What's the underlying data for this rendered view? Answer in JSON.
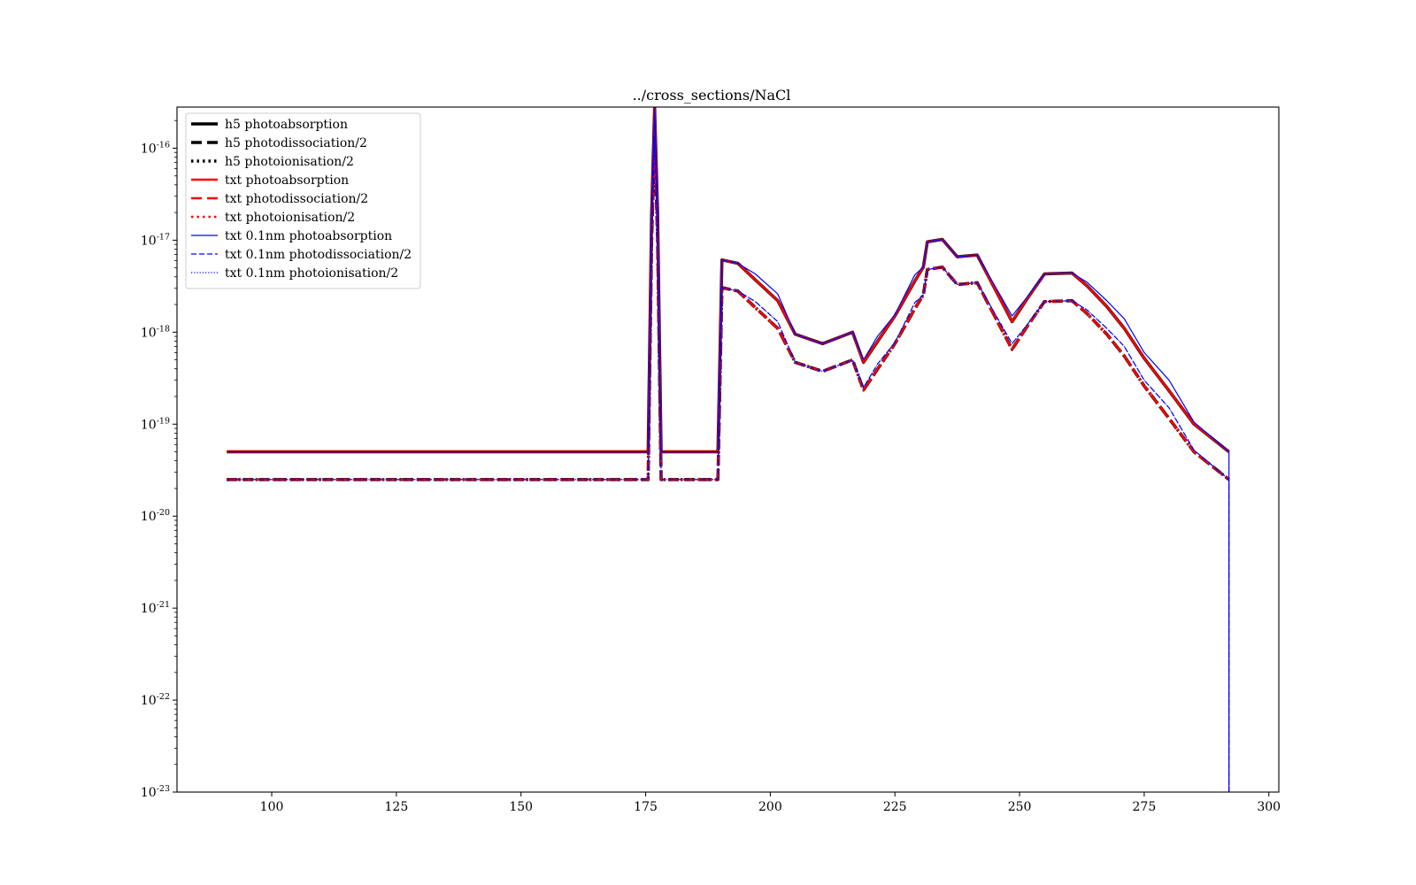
{
  "chart_data": {
    "type": "line",
    "title": "../cross_sections/NaCl",
    "xlabel": "",
    "ylabel": "",
    "xlim": [
      81,
      302
    ],
    "ylim": [
      1e-23,
      2.8e-16
    ],
    "yscale": "log",
    "grid": false,
    "legend_position": "top-left",
    "xticks": [
      {
        "value": 100,
        "label": "100"
      },
      {
        "value": 125,
        "label": "125"
      },
      {
        "value": 150,
        "label": "150"
      },
      {
        "value": 175,
        "label": "175"
      },
      {
        "value": 200,
        "label": "200"
      },
      {
        "value": 225,
        "label": "225"
      },
      {
        "value": 250,
        "label": "250"
      },
      {
        "value": 275,
        "label": "275"
      },
      {
        "value": 300,
        "label": "300"
      }
    ],
    "yticks": [
      {
        "value": 1e-23,
        "base": "10",
        "exp": "-23"
      },
      {
        "value": 1e-22,
        "base": "10",
        "exp": "-22"
      },
      {
        "value": 1e-21,
        "base": "10",
        "exp": "-21"
      },
      {
        "value": 1e-20,
        "base": "10",
        "exp": "-20"
      },
      {
        "value": 1e-19,
        "base": "10",
        "exp": "-19"
      },
      {
        "value": 1e-18,
        "base": "10",
        "exp": "-18"
      },
      {
        "value": 1e-17,
        "base": "10",
        "exp": "-17"
      },
      {
        "value": 1e-16,
        "base": "10",
        "exp": "-16"
      }
    ],
    "series": [
      {
        "name": "h5 photoabsorption",
        "color": "#000000",
        "dash": "solid",
        "width": 3.5,
        "x": [
          91,
          175.5,
          176.2,
          176.8,
          177.4,
          178.1,
          178.7,
          189.5,
          190.3,
          193.5,
          197,
          201.5,
          205,
          210.5,
          216.5,
          218.7,
          221.5,
          225,
          229,
          230.7,
          231.5,
          234.5,
          237.5,
          241.5,
          248.5,
          251.5,
          255,
          260.5,
          263.5,
          267.5,
          271,
          275,
          280,
          285,
          292
        ],
        "y": [
          5e-20,
          5e-20,
          2e-17,
          2.7e-16,
          2e-17,
          5e-20,
          5e-20,
          5e-20,
          6.1e-18,
          5.6e-18,
          3.7e-18,
          2.2e-18,
          9.5e-19,
          7.5e-19,
          1e-18,
          4.7e-19,
          7.9e-19,
          1.5e-18,
          3.6e-18,
          5.1e-18,
          9.6e-18,
          1.02e-17,
          6.6e-18,
          6.9e-18,
          1.3e-18,
          2.3e-18,
          4.3e-18,
          4.4e-18,
          3.2e-18,
          1.9e-18,
          1.1e-18,
          5.2e-19,
          2.3e-19,
          1e-19,
          5e-20
        ]
      },
      {
        "name": "h5 photodissociation/2",
        "color": "#000000",
        "dash": "dashed",
        "width": 3.5,
        "x": [
          91,
          175.5,
          176.2,
          176.8,
          177.4,
          178.1,
          178.7,
          189.5,
          190.3,
          193.5,
          197,
          201.5,
          205,
          210.5,
          216.5,
          218.7,
          221.5,
          225,
          229,
          230.7,
          231.5,
          234.5,
          237.5,
          241.5,
          248.5,
          251.5,
          255,
          260.5,
          263.5,
          267.5,
          271,
          275,
          280,
          285,
          292
        ],
        "y": [
          2.5e-20,
          2.5e-20,
          1e-17,
          1.35e-16,
          1e-17,
          2.5e-20,
          2.5e-20,
          2.5e-20,
          3.05e-18,
          2.8e-18,
          1.85e-18,
          1.1e-18,
          4.7e-19,
          3.75e-19,
          5e-19,
          2.35e-19,
          3.95e-19,
          7.5e-19,
          1.8e-18,
          2.55e-18,
          4.8e-18,
          5.1e-18,
          3.3e-18,
          3.45e-18,
          6.5e-19,
          1.15e-18,
          2.15e-18,
          2.2e-18,
          1.6e-18,
          9.5e-19,
          5.5e-19,
          2.6e-19,
          1.15e-19,
          5e-20,
          2.5e-20
        ]
      },
      {
        "name": "h5 photoionisation/2",
        "color": "#000000",
        "dash": "dotted",
        "width": 3.5,
        "x": [
          91,
          175.5,
          176.2,
          176.8,
          177.4,
          178.1,
          178.7,
          189.5,
          190.3,
          193.5,
          197,
          201.5,
          205,
          210.5,
          216.5,
          218.7,
          221.5,
          225,
          229,
          230.7,
          231.5,
          234.5,
          237.5,
          241.5,
          248.5,
          251.5,
          255,
          260.5,
          263.5,
          267.5,
          271,
          275,
          280,
          285,
          292
        ],
        "y": [
          2.5e-20,
          2.5e-20,
          1e-17,
          1.35e-16,
          1e-17,
          2.5e-20,
          2.5e-20,
          2.5e-20,
          3.05e-18,
          2.8e-18,
          1.85e-18,
          1.1e-18,
          4.7e-19,
          3.75e-19,
          5e-19,
          2.35e-19,
          3.95e-19,
          7.5e-19,
          1.8e-18,
          2.55e-18,
          4.8e-18,
          5.1e-18,
          3.3e-18,
          3.45e-18,
          6.5e-19,
          1.15e-18,
          2.15e-18,
          2.2e-18,
          1.6e-18,
          9.5e-19,
          5.5e-19,
          2.6e-19,
          1.15e-19,
          5e-20,
          2.5e-20
        ]
      },
      {
        "name": "txt photoabsorption",
        "color": "#ff0000",
        "dash": "solid",
        "width": 2.5,
        "x": [
          91,
          175.5,
          176.2,
          176.8,
          177.4,
          178.1,
          178.7,
          189.5,
          190.3,
          193.5,
          197,
          201.5,
          205,
          210.5,
          216.5,
          218.7,
          221.5,
          225,
          229,
          230.7,
          231.5,
          234.5,
          237.5,
          241.5,
          248.5,
          251.5,
          255,
          260.5,
          263.5,
          267.5,
          271,
          275,
          280,
          285,
          292
        ],
        "y": [
          5e-20,
          5e-20,
          2e-17,
          2.7e-16,
          2e-17,
          5e-20,
          5e-20,
          5e-20,
          6.1e-18,
          5.6e-18,
          3.7e-18,
          2.2e-18,
          9.5e-19,
          7.5e-19,
          1e-18,
          4.7e-19,
          7.9e-19,
          1.5e-18,
          3.6e-18,
          5.1e-18,
          9.6e-18,
          1.02e-17,
          6.6e-18,
          6.9e-18,
          1.3e-18,
          2.3e-18,
          4.3e-18,
          4.4e-18,
          3.2e-18,
          1.9e-18,
          1.1e-18,
          5.2e-19,
          2.3e-19,
          1e-19,
          5e-20
        ]
      },
      {
        "name": "txt photodissociation/2",
        "color": "#ff0000",
        "dash": "dashed",
        "width": 2.5,
        "x": [
          91,
          175.5,
          176.2,
          176.8,
          177.4,
          178.1,
          178.7,
          189.5,
          190.3,
          193.5,
          197,
          201.5,
          205,
          210.5,
          216.5,
          218.7,
          221.5,
          225,
          229,
          230.7,
          231.5,
          234.5,
          237.5,
          241.5,
          248.5,
          251.5,
          255,
          260.5,
          263.5,
          267.5,
          271,
          275,
          280,
          285,
          292
        ],
        "y": [
          2.5e-20,
          2.5e-20,
          1e-17,
          1.35e-16,
          1e-17,
          2.5e-20,
          2.5e-20,
          2.5e-20,
          3.05e-18,
          2.8e-18,
          1.85e-18,
          1.1e-18,
          4.7e-19,
          3.75e-19,
          5e-19,
          2.35e-19,
          3.95e-19,
          7.5e-19,
          1.8e-18,
          2.55e-18,
          4.8e-18,
          5.1e-18,
          3.3e-18,
          3.45e-18,
          6.5e-19,
          1.15e-18,
          2.15e-18,
          2.2e-18,
          1.6e-18,
          9.5e-19,
          5.5e-19,
          2.6e-19,
          1.15e-19,
          5e-20,
          2.5e-20
        ]
      },
      {
        "name": "txt photoionisation/2",
        "color": "#ff0000",
        "dash": "dotted",
        "width": 2.5,
        "x": [
          91,
          175.5,
          176.2,
          176.8,
          177.4,
          178.1,
          178.7,
          189.5,
          190.3,
          193.5,
          197,
          201.5,
          205,
          210.5,
          216.5,
          218.7,
          221.5,
          225,
          229,
          230.7,
          231.5,
          234.5,
          237.5,
          241.5,
          248.5,
          251.5,
          255,
          260.5,
          263.5,
          267.5,
          271,
          275,
          280,
          285,
          292
        ],
        "y": [
          2.5e-20,
          2.5e-20,
          1e-17,
          1.35e-16,
          1e-17,
          2.5e-20,
          2.5e-20,
          2.5e-20,
          3.05e-18,
          2.8e-18,
          1.85e-18,
          1.1e-18,
          4.7e-19,
          3.75e-19,
          5e-19,
          2.35e-19,
          3.95e-19,
          7.5e-19,
          1.8e-18,
          2.55e-18,
          4.8e-18,
          5.1e-18,
          3.3e-18,
          3.45e-18,
          6.5e-19,
          1.15e-18,
          2.15e-18,
          2.2e-18,
          1.6e-18,
          9.5e-19,
          5.5e-19,
          2.6e-19,
          1.15e-19,
          5e-20,
          2.5e-20
        ]
      },
      {
        "name": "txt 0.1nm photoabsorption",
        "color": "#0000ff",
        "dash": "solid",
        "width": 1.2,
        "x": [
          91,
          175.5,
          176.2,
          176.8,
          177.4,
          178.1,
          178.7,
          189.5,
          190.3,
          193.5,
          197,
          201.5,
          205,
          210.5,
          216.5,
          218.7,
          221.5,
          225,
          229,
          230.7,
          231.5,
          234.5,
          237.5,
          241.5,
          248.5,
          251.5,
          255,
          260.5,
          263.5,
          267.5,
          271,
          275,
          280,
          285,
          292,
          292,
          292
        ],
        "y": [
          5e-20,
          5e-20,
          2e-17,
          2.7e-16,
          2e-17,
          5e-20,
          5e-20,
          5e-20,
          6.1e-18,
          5.6e-18,
          4.3e-18,
          2.6e-18,
          9.5e-19,
          7.5e-19,
          1e-18,
          5e-19,
          9e-19,
          1.55e-18,
          4.2e-18,
          5.1e-18,
          9.6e-18,
          1.02e-17,
          6.6e-18,
          6.9e-18,
          1.5e-18,
          2.4e-18,
          4.3e-18,
          4.4e-18,
          3.5e-18,
          2.2e-18,
          1.4e-18,
          6e-19,
          3e-19,
          1.05e-19,
          5e-20,
          1e-23,
          1e-23
        ]
      },
      {
        "name": "txt 0.1nm photodissociation/2",
        "color": "#0000ff",
        "dash": "dashed-thin",
        "width": 1.2,
        "x": [
          91,
          175.5,
          176.2,
          176.8,
          177.4,
          178.1,
          178.7,
          189.5,
          190.3,
          193.5,
          197,
          201.5,
          205,
          210.5,
          216.5,
          218.7,
          221.5,
          225,
          229,
          230.7,
          231.5,
          234.5,
          237.5,
          241.5,
          248.5,
          251.5,
          255,
          260.5,
          263.5,
          267.5,
          271,
          275,
          280,
          285,
          292,
          292
        ],
        "y": [
          2.5e-20,
          2.5e-20,
          1e-17,
          1.35e-16,
          1e-17,
          2.5e-20,
          2.5e-20,
          2.5e-20,
          3.05e-18,
          2.8e-18,
          2.15e-18,
          1.3e-18,
          4.7e-19,
          3.75e-19,
          5e-19,
          2.5e-19,
          4.5e-19,
          7.7e-19,
          2.1e-18,
          2.55e-18,
          4.8e-18,
          5.1e-18,
          3.3e-18,
          3.45e-18,
          7.5e-19,
          1.2e-18,
          2.15e-18,
          2.2e-18,
          1.75e-18,
          1.1e-18,
          7e-19,
          3e-19,
          1.5e-19,
          5.2e-20,
          2.5e-20,
          1e-23
        ]
      },
      {
        "name": "txt 0.1nm photoionisation/2",
        "color": "#0000ff",
        "dash": "dotted-thin",
        "width": 1.2,
        "x": [
          91,
          175.5,
          176.2,
          176.8,
          177.4,
          178.1,
          178.7,
          189.5,
          190.3,
          193.5,
          197,
          201.5,
          205,
          210.5,
          216.5,
          218.7,
          221.5,
          225,
          229,
          230.7,
          231.5,
          234.5,
          237.5,
          241.5,
          248.5,
          251.5,
          255,
          260.5,
          263.5,
          267.5,
          271,
          275,
          280,
          285,
          292,
          292
        ],
        "y": [
          2.5e-20,
          2.5e-20,
          1e-17,
          1.35e-16,
          1e-17,
          2.5e-20,
          2.5e-20,
          2.5e-20,
          3.05e-18,
          2.8e-18,
          2.15e-18,
          1.3e-18,
          4.7e-19,
          3.75e-19,
          5e-19,
          2.5e-19,
          4.5e-19,
          7.7e-19,
          2.1e-18,
          2.55e-18,
          4.8e-18,
          5.1e-18,
          3.3e-18,
          3.45e-18,
          7.5e-19,
          1.2e-18,
          2.15e-18,
          2.2e-18,
          1.75e-18,
          1.1e-18,
          7e-19,
          3e-19,
          1.5e-19,
          5.2e-20,
          2.5e-20,
          1e-23
        ]
      }
    ]
  }
}
